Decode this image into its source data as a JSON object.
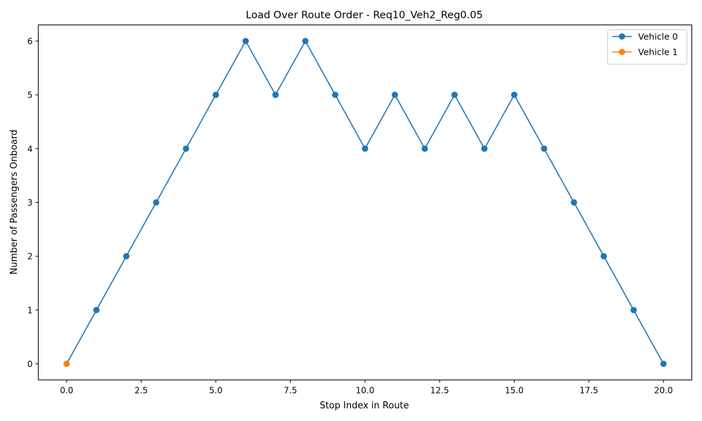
{
  "chart_data": {
    "type": "line",
    "title": "Load Over Route Order - Req10_Veh2_Reg0.05",
    "xlabel": "Stop Index in Route",
    "ylabel": "Number of Passengers Onboard",
    "xlim": [
      -0.95,
      20.95
    ],
    "ylim": [
      -0.3,
      6.3
    ],
    "x_ticks": [
      0,
      2.5,
      5,
      7.5,
      10,
      12.5,
      15,
      17.5,
      20
    ],
    "x_tick_labels": [
      "0.0",
      "2.5",
      "5.0",
      "7.5",
      "10.0",
      "12.5",
      "15.0",
      "17.5",
      "20.0"
    ],
    "y_ticks": [
      0,
      1,
      2,
      3,
      4,
      5,
      6
    ],
    "y_tick_labels": [
      "0",
      "1",
      "2",
      "3",
      "4",
      "5",
      "6"
    ],
    "grid": false,
    "legend_position": "top-right",
    "series": [
      {
        "name": "Vehicle 0",
        "color": "#1f77b4",
        "marker": "circle",
        "x": [
          0,
          1,
          2,
          3,
          4,
          5,
          6,
          7,
          8,
          9,
          10,
          11,
          12,
          13,
          14,
          15,
          16,
          17,
          18,
          19,
          20
        ],
        "y": [
          0,
          1,
          2,
          3,
          4,
          5,
          6,
          5,
          6,
          5,
          4,
          5,
          4,
          5,
          4,
          5,
          4,
          3,
          2,
          1,
          0
        ]
      },
      {
        "name": "Vehicle 1",
        "color": "#ff7f0e",
        "marker": "circle",
        "x": [
          0
        ],
        "y": [
          0
        ]
      }
    ]
  }
}
